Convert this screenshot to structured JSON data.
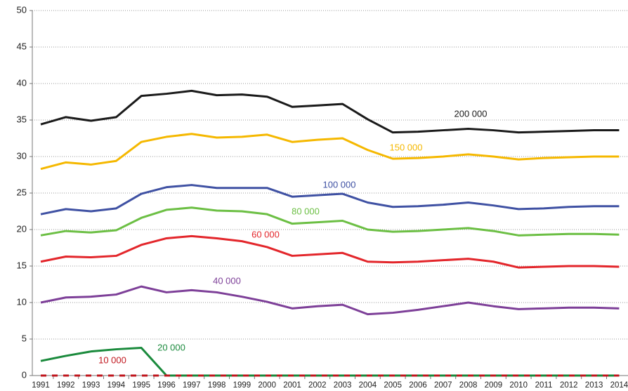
{
  "chart_data": {
    "type": "line",
    "categories": [
      "1991",
      "1992",
      "1993",
      "1994",
      "1995",
      "1996",
      "1997",
      "1998",
      "1999",
      "2000",
      "2001",
      "2002",
      "2003",
      "2004",
      "2005",
      "2006",
      "2007",
      "2008",
      "2009",
      "2010",
      "2011",
      "2012",
      "2013",
      "2014"
    ],
    "series": [
      {
        "name": "200 000",
        "color": "#1a1a1a",
        "values": [
          34.4,
          35.4,
          34.9,
          35.4,
          38.3,
          38.6,
          39.0,
          38.4,
          38.5,
          38.2,
          36.8,
          37.0,
          37.2,
          35.1,
          33.3,
          33.4,
          33.6,
          33.8,
          33.6,
          33.3,
          33.4,
          33.5,
          33.6,
          33.6
        ]
      },
      {
        "name": "150 000",
        "color": "#f5b800",
        "values": [
          28.3,
          29.2,
          28.9,
          29.4,
          32.0,
          32.7,
          33.1,
          32.6,
          32.7,
          33.0,
          32.0,
          32.3,
          32.5,
          30.9,
          29.7,
          29.8,
          30.0,
          30.3,
          30.0,
          29.6,
          29.8,
          29.9,
          30.0,
          30.0
        ]
      },
      {
        "name": "100 000",
        "color": "#3f51a3",
        "values": [
          22.1,
          22.8,
          22.5,
          22.9,
          24.9,
          25.8,
          26.1,
          25.7,
          25.7,
          25.7,
          24.5,
          24.7,
          24.9,
          23.7,
          23.1,
          23.2,
          23.4,
          23.7,
          23.3,
          22.8,
          22.9,
          23.1,
          23.2,
          23.2
        ]
      },
      {
        "name": "80 000",
        "color": "#6cbf44",
        "values": [
          19.2,
          19.8,
          19.6,
          19.9,
          21.6,
          22.7,
          23.0,
          22.6,
          22.5,
          22.1,
          20.8,
          21.0,
          21.2,
          20.0,
          19.7,
          19.8,
          20.0,
          20.2,
          19.8,
          19.2,
          19.3,
          19.4,
          19.4,
          19.3
        ]
      },
      {
        "name": "60 000",
        "color": "#e3262b",
        "values": [
          15.6,
          16.3,
          16.2,
          16.4,
          17.9,
          18.8,
          19.1,
          18.8,
          18.4,
          17.6,
          16.4,
          16.6,
          16.8,
          15.6,
          15.5,
          15.6,
          15.8,
          16.0,
          15.6,
          14.8,
          14.9,
          15.0,
          15.0,
          14.9
        ]
      },
      {
        "name": "40 000",
        "color": "#7d3f98",
        "values": [
          10.0,
          10.7,
          10.8,
          11.1,
          12.2,
          11.4,
          11.7,
          11.4,
          10.8,
          10.1,
          9.2,
          9.5,
          9.7,
          8.4,
          8.6,
          9.0,
          9.5,
          10.0,
          9.5,
          9.1,
          9.2,
          9.3,
          9.3,
          9.2
        ]
      },
      {
        "name": "20 000",
        "color": "#1a8a3c",
        "values": [
          2.0,
          2.7,
          3.3,
          3.6,
          3.8,
          0,
          0,
          0,
          0,
          0,
          0,
          0,
          0,
          0,
          0,
          0,
          0,
          0,
          0,
          0,
          0,
          0,
          0,
          0
        ]
      },
      {
        "name": "10 000",
        "color": "#c0161d",
        "values": [
          0,
          0,
          0,
          0,
          0,
          0,
          0,
          0,
          0,
          0,
          0,
          0,
          0,
          0,
          0,
          0,
          0,
          0,
          0,
          0,
          0,
          0,
          0,
          0
        ]
      }
    ],
    "ylim": [
      0,
      50
    ],
    "yticks": [
      0,
      5,
      10,
      15,
      20,
      25,
      30,
      35,
      40,
      45,
      50
    ],
    "grid": true
  }
}
